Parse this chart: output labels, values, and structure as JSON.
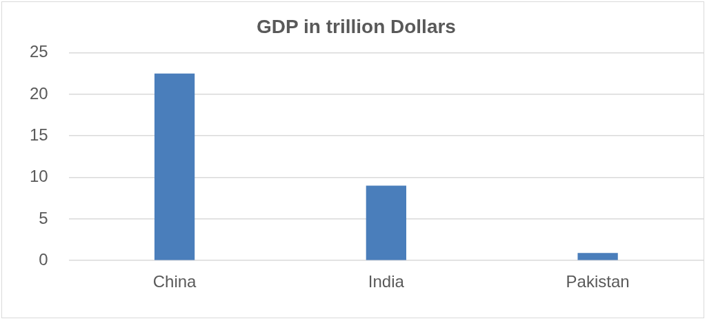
{
  "chart_data": {
    "type": "bar",
    "title": "GDP in trillion Dollars",
    "categories": [
      "China",
      "India",
      "Pakistan"
    ],
    "values": [
      22.5,
      9,
      0.9
    ],
    "color": "#4a7ebb",
    "ylim": [
      0,
      25
    ],
    "yticks": [
      0,
      5,
      10,
      15,
      20,
      25
    ],
    "grid": "y",
    "legend": false
  }
}
